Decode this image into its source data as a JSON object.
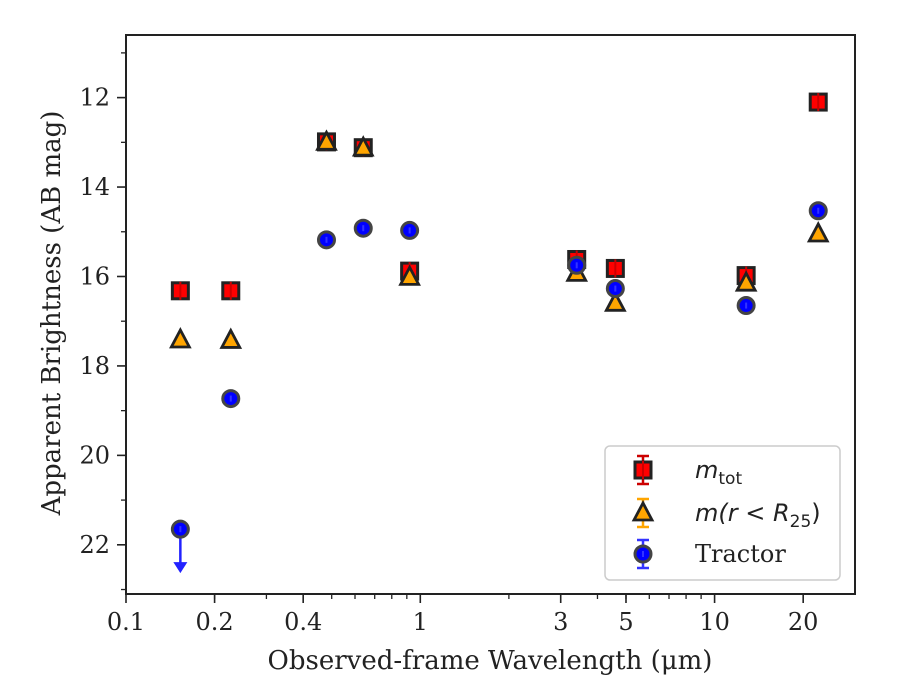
{
  "chart_data": {
    "type": "scatter",
    "xscale": "log",
    "xlim": [
      0.1,
      30
    ],
    "ylim": [
      23.1,
      10.6
    ],
    "y_inverted": true,
    "xlabel": "Observed-frame Wavelength (μm)",
    "ylabel": "Apparent Brightness (AB mag)",
    "xticks": [
      {
        "value": 0.1,
        "label": "0.1"
      },
      {
        "value": 0.2,
        "label": "0.2"
      },
      {
        "value": 0.4,
        "label": "0.4"
      },
      {
        "value": 1,
        "label": "1"
      },
      {
        "value": 3,
        "label": "3"
      },
      {
        "value": 5,
        "label": "5"
      },
      {
        "value": 10,
        "label": "10"
      },
      {
        "value": 20,
        "label": "20"
      }
    ],
    "yticks": [
      {
        "value": 12,
        "label": "12"
      },
      {
        "value": 14,
        "label": "14"
      },
      {
        "value": 16,
        "label": "16"
      },
      {
        "value": 18,
        "label": "18"
      },
      {
        "value": 20,
        "label": "20"
      },
      {
        "value": 22,
        "label": "22"
      }
    ],
    "legend_position": "lower-right",
    "series": [
      {
        "name": "m_tot",
        "legend_main": "m",
        "legend_sub": "tot",
        "marker": "square",
        "color": "#ff0000",
        "edge": "#222222",
        "points": [
          {
            "x": 0.153,
            "y": 16.32
          },
          {
            "x": 0.227,
            "y": 16.32
          },
          {
            "x": 0.48,
            "y": 12.99
          },
          {
            "x": 0.64,
            "y": 13.12
          },
          {
            "x": 0.92,
            "y": 15.88
          },
          {
            "x": 3.4,
            "y": 15.62
          },
          {
            "x": 4.6,
            "y": 15.82
          },
          {
            "x": 12.8,
            "y": 15.98
          },
          {
            "x": 22.5,
            "y": 12.1
          }
        ]
      },
      {
        "name": "m(r < R_25)",
        "legend_main": "m(r < R",
        "legend_sub": "25",
        "legend_tail": ")",
        "marker": "triangle",
        "color": "#ffa500",
        "edge": "#222222",
        "points": [
          {
            "x": 0.153,
            "y": 17.42
          },
          {
            "x": 0.227,
            "y": 17.43
          },
          {
            "x": 0.48,
            "y": 13.0
          },
          {
            "x": 0.64,
            "y": 13.13
          },
          {
            "x": 0.92,
            "y": 16.02
          },
          {
            "x": 3.4,
            "y": 15.93
          },
          {
            "x": 4.6,
            "y": 16.6
          },
          {
            "x": 12.8,
            "y": 16.15
          },
          {
            "x": 22.5,
            "y": 15.05
          }
        ]
      },
      {
        "name": "Tractor",
        "legend_main": "Tractor",
        "marker": "circle",
        "color": "#0000ff",
        "edge": "#444444",
        "points": [
          {
            "x": 0.153,
            "y": 21.65,
            "upper_limit": true
          },
          {
            "x": 0.227,
            "y": 18.73
          },
          {
            "x": 0.48,
            "y": 15.18
          },
          {
            "x": 0.64,
            "y": 14.92
          },
          {
            "x": 0.92,
            "y": 14.97
          },
          {
            "x": 3.4,
            "y": 15.75
          },
          {
            "x": 4.6,
            "y": 16.27
          },
          {
            "x": 12.8,
            "y": 16.65
          },
          {
            "x": 22.5,
            "y": 14.53
          }
        ]
      }
    ]
  }
}
